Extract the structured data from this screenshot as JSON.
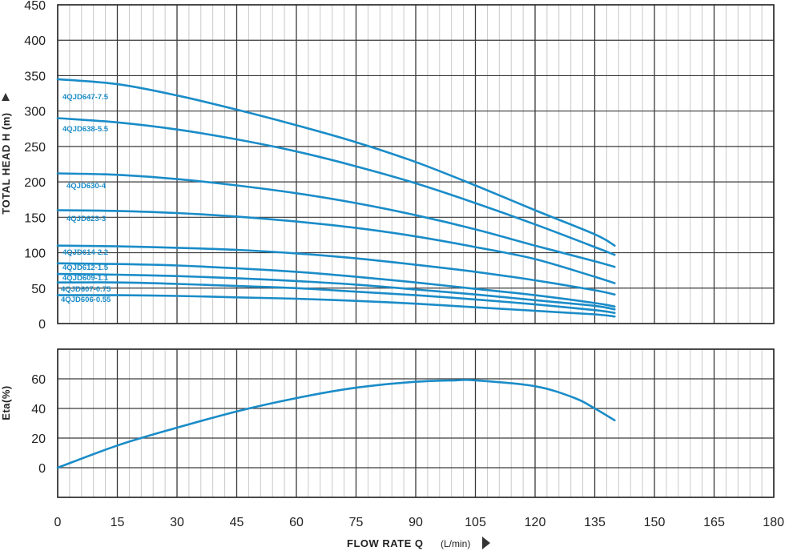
{
  "chart_data": [
    {
      "type": "line",
      "panel": "head",
      "ylabel": "TOTAL HEAD H (m)",
      "xlabel": "FLOW RATE Q",
      "xunit": "(L/min)",
      "xlim": [
        0,
        180
      ],
      "ylim": [
        0,
        450
      ],
      "xticks": [
        "0",
        "15",
        "30",
        "45",
        "60",
        "75",
        "90",
        "105",
        "120",
        "135",
        "150",
        "165",
        "180"
      ],
      "yticks": [
        "0",
        "50",
        "100",
        "150",
        "200",
        "250",
        "300",
        "350",
        "400",
        "450"
      ],
      "grid": true,
      "color": "#1a8cc8",
      "series": [
        {
          "name": "4QJD647-7.5",
          "x": [
            0,
            15,
            30,
            45,
            60,
            75,
            90,
            105,
            120,
            135,
            140
          ],
          "y": [
            345,
            338,
            322,
            302,
            280,
            256,
            228,
            195,
            160,
            126,
            110
          ]
        },
        {
          "name": "4QJD638-5.5",
          "x": [
            0,
            15,
            30,
            45,
            60,
            75,
            90,
            105,
            120,
            135,
            140
          ],
          "y": [
            290,
            284,
            274,
            260,
            243,
            222,
            198,
            170,
            140,
            108,
            97
          ]
        },
        {
          "name": "4QJD630-4",
          "x": [
            0,
            15,
            30,
            45,
            60,
            75,
            90,
            105,
            120,
            135,
            140
          ],
          "y": [
            212,
            210,
            204,
            195,
            184,
            170,
            153,
            133,
            110,
            88,
            80
          ]
        },
        {
          "name": "4QJD623-3",
          "x": [
            0,
            15,
            30,
            45,
            60,
            75,
            90,
            105,
            120,
            135,
            140
          ],
          "y": [
            160,
            159,
            156,
            151,
            144,
            135,
            123,
            108,
            91,
            66,
            57
          ]
        },
        {
          "name": "4QJD614-2.2",
          "x": [
            0,
            15,
            30,
            45,
            60,
            75,
            90,
            105,
            120,
            135,
            140
          ],
          "y": [
            110,
            109,
            107,
            104,
            99,
            92,
            83,
            73,
            61,
            47,
            41
          ]
        },
        {
          "name": "4QJD612-1.5",
          "x": [
            0,
            15,
            30,
            45,
            60,
            75,
            90,
            105,
            120,
            135,
            140
          ],
          "y": [
            85,
            84,
            82,
            78,
            73,
            66,
            58,
            49,
            40,
            29,
            24
          ]
        },
        {
          "name": "4QJD609-1.1",
          "x": [
            0,
            15,
            30,
            45,
            60,
            75,
            90,
            105,
            120,
            135,
            140
          ],
          "y": [
            70,
            69,
            67,
            64,
            60,
            55,
            48,
            41,
            33,
            25,
            20
          ]
        },
        {
          "name": "4QJD607-0.75",
          "x": [
            0,
            15,
            30,
            45,
            60,
            75,
            90,
            105,
            120,
            135,
            140
          ],
          "y": [
            58,
            58,
            56,
            53,
            50,
            45,
            40,
            34,
            27,
            19,
            15
          ]
        },
        {
          "name": "4QJD606-0.55",
          "x": [
            0,
            15,
            30,
            45,
            60,
            75,
            90,
            105,
            120,
            135,
            140
          ],
          "y": [
            40,
            40,
            39,
            37,
            35,
            32,
            28,
            23,
            18,
            13,
            10
          ]
        }
      ]
    },
    {
      "type": "line",
      "panel": "efficiency",
      "ylabel": "Eta(%)",
      "xlim": [
        0,
        180
      ],
      "ylim": [
        -20,
        80
      ],
      "yticks": [
        "0",
        "20",
        "40",
        "60"
      ],
      "grid": true,
      "color": "#1a8cc8",
      "series": [
        {
          "name": "",
          "x": [
            0,
            15,
            30,
            45,
            60,
            75,
            90,
            100,
            105,
            120,
            130,
            135,
            140
          ],
          "y": [
            0,
            15,
            27,
            38,
            47,
            54,
            58,
            59,
            59,
            55,
            47,
            40,
            32
          ]
        }
      ]
    }
  ]
}
